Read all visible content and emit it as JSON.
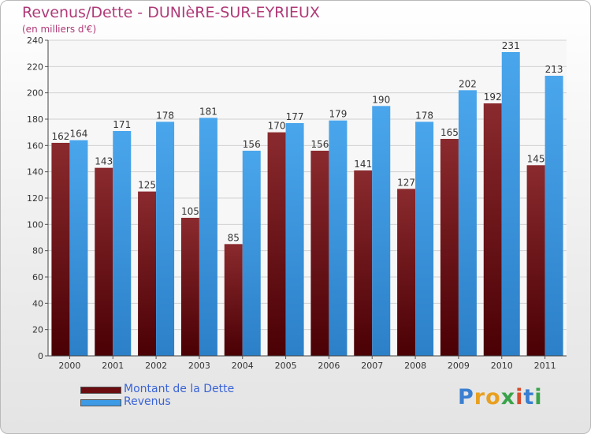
{
  "chart_data": {
    "type": "bar",
    "title": "Revenus/Dette - DUNIèRE-SUR-EYRIEUX",
    "subtitle": "(en milliers d'€)",
    "categories": [
      "2000",
      "2001",
      "2002",
      "2003",
      "2004",
      "2005",
      "2006",
      "2007",
      "2008",
      "2009",
      "2010",
      "2011"
    ],
    "series": [
      {
        "name": "Montant de la Dette",
        "color": "#6b0c10",
        "values": [
          162,
          143,
          125,
          105,
          85,
          170,
          156,
          141,
          127,
          165,
          192,
          145
        ]
      },
      {
        "name": "Revenus",
        "color": "#3d9ae5",
        "values": [
          164,
          171,
          178,
          181,
          156,
          177,
          179,
          190,
          178,
          202,
          231,
          213
        ]
      }
    ],
    "ylim": [
      0,
      240
    ],
    "yticks": [
      0,
      20,
      40,
      60,
      80,
      100,
      120,
      140,
      160,
      180,
      200,
      220,
      240
    ],
    "grid": true,
    "legend_position": "bottom-left"
  },
  "logo": {
    "letters": [
      {
        "ch": "P",
        "color": "#3a7fd1"
      },
      {
        "ch": "r",
        "color": "#e8a020"
      },
      {
        "ch": "o",
        "color": "#e8a020"
      },
      {
        "ch": "x",
        "color": "#3aa34a"
      },
      {
        "ch": "i",
        "color": "#d84a2a"
      },
      {
        "ch": "t",
        "color": "#3a7fd1"
      },
      {
        "ch": "i",
        "color": "#3aa34a"
      }
    ]
  }
}
